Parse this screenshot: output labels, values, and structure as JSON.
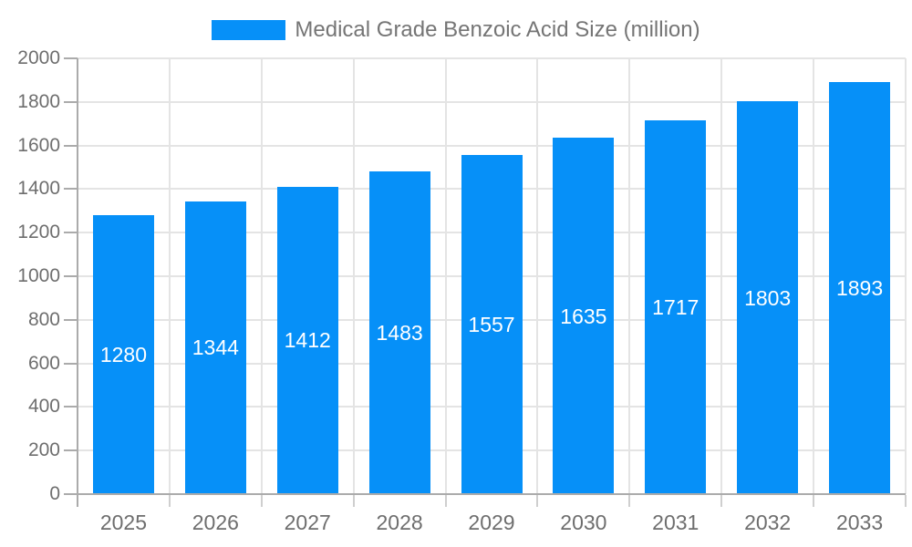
{
  "legend": {
    "label": "Medical Grade Benzoic Acid Size (million)"
  },
  "colors": {
    "bar": "#0690f8",
    "grid": "#e4e4e4",
    "axis": "#ababab",
    "boundary_tick": "#cfcfcf",
    "axis_label_text": "#6e6e6e",
    "legend_text": "#757575",
    "bar_label_text": "#ffffff",
    "background": "#ffffff"
  },
  "chart_data": {
    "type": "bar",
    "title": "Medical Grade Benzoic Acid Size (million)",
    "series_name": "Medical Grade Benzoic Acid Size (million)",
    "categories": [
      "2025",
      "2026",
      "2027",
      "2028",
      "2029",
      "2030",
      "2031",
      "2032",
      "2033"
    ],
    "values": [
      1280,
      1344,
      1412,
      1483,
      1557,
      1635,
      1717,
      1803,
      1893
    ],
    "xlabel": "",
    "ylabel": "",
    "ylim": [
      0,
      2000
    ],
    "ytick_step": 200,
    "ytick_labels": [
      "0",
      "200",
      "400",
      "600",
      "800",
      "1000",
      "1200",
      "1400",
      "1600",
      "1800",
      "2000"
    ],
    "grid": true,
    "legend_position": "top-center",
    "value_label_position": "inside-middle"
  }
}
